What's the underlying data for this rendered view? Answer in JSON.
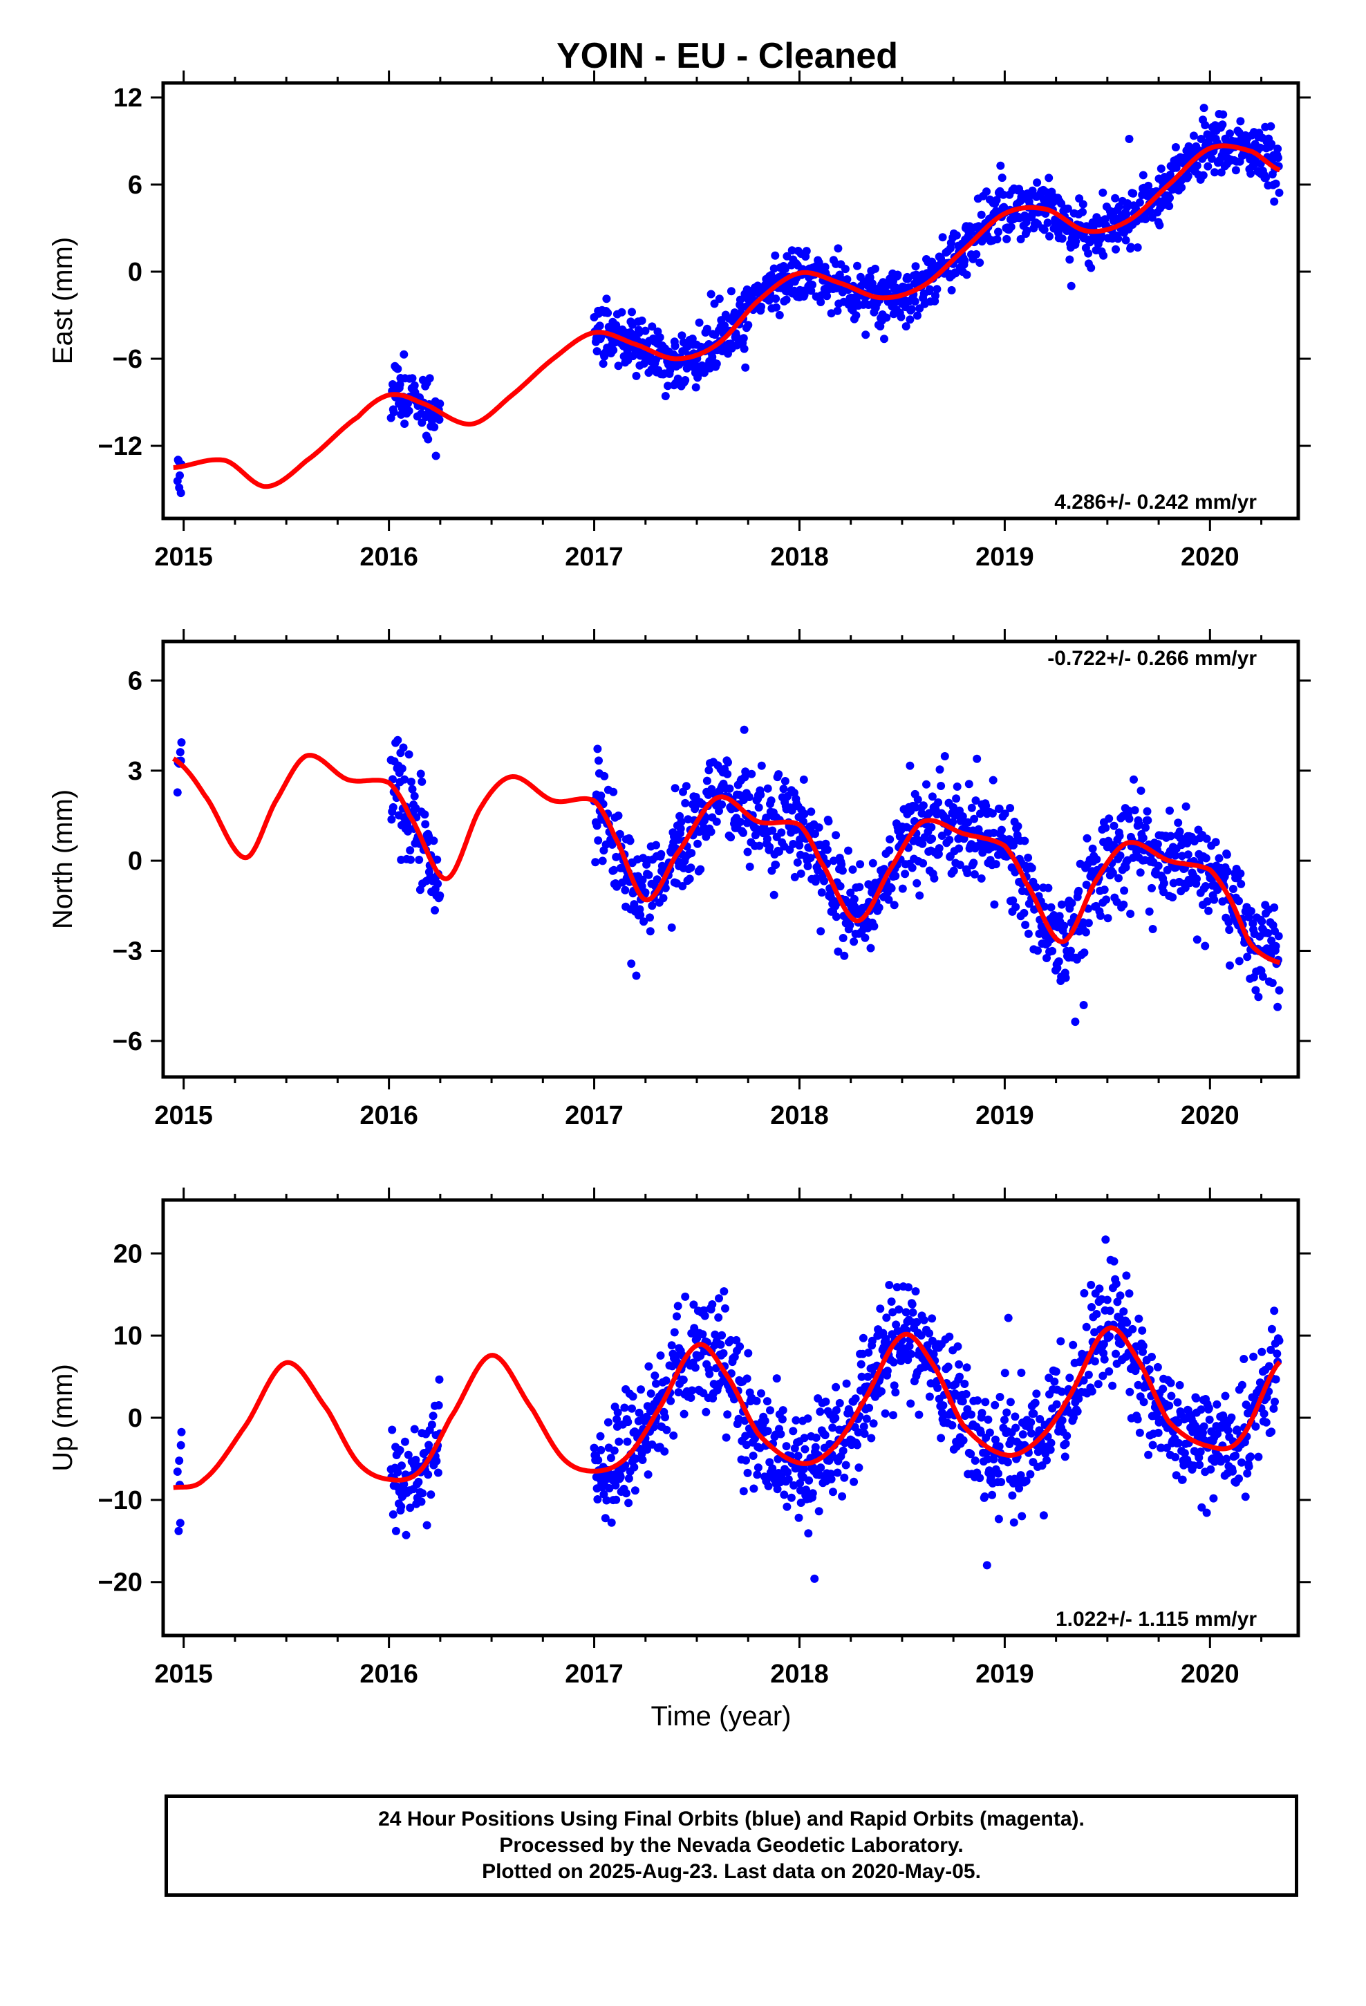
{
  "chart_data": [
    {
      "type": "scatter",
      "title": "YOIN  - EU - Cleaned",
      "ylabel": "East (mm)",
      "xlim": [
        2014.9,
        2020.43
      ],
      "ylim": [
        -17,
        13
      ],
      "yticks": [
        12,
        6,
        0,
        -6,
        -12
      ],
      "ytick_labels": [
        "12",
        "6",
        "0",
        "−6",
        "−12"
      ],
      "xticks": [
        2015,
        2016,
        2017,
        2018,
        2019,
        2020
      ],
      "xtick_labels": [
        "2015",
        "2016",
        "2017",
        "2018",
        "2019",
        "2020"
      ],
      "rate_text": "4.286+/- 0.242 mm/yr",
      "rate_position": "bottom-right",
      "point_color": "#0000ff",
      "fit_color": "#ff0000",
      "model": {
        "intercept": -13.8,
        "slope": 4.286,
        "t0": 2015.0,
        "annual_cos": 0.2,
        "annual_sin": 1.6,
        "semiannual_cos": 0.1,
        "semiannual_sin": 0.4
      },
      "noise": 1.0,
      "segments": [
        [
          2014.97,
          2014.99
        ],
        [
          2016.01,
          2016.25
        ],
        [
          2017.0,
          2020.34
        ]
      ],
      "fit": {
        "x": [
          2014.95,
          2015.2,
          2015.4,
          2015.6,
          2015.85,
          2016.0,
          2016.15,
          2016.4,
          2016.6,
          2016.8,
          2017.0,
          2017.2,
          2017.4,
          2017.6,
          2017.8,
          2018.0,
          2018.2,
          2018.4,
          2018.6,
          2018.8,
          2019.0,
          2019.2,
          2019.4,
          2019.6,
          2019.8,
          2020.0,
          2020.2,
          2020.34
        ],
        "y": [
          -13.5,
          -13.0,
          -14.8,
          -13.0,
          -10.0,
          -8.5,
          -9.0,
          -10.5,
          -8.5,
          -6.0,
          -4.2,
          -5.0,
          -6.0,
          -5.0,
          -2.0,
          -0.1,
          -0.8,
          -1.8,
          -1.0,
          1.5,
          4.0,
          4.3,
          2.8,
          3.5,
          6.0,
          8.5,
          8.3,
          7.0
        ]
      },
      "seed": 11
    },
    {
      "type": "scatter",
      "ylabel": "North (mm)",
      "xlim": [
        2014.9,
        2020.43
      ],
      "ylim": [
        -7.2,
        7.3
      ],
      "yticks": [
        6,
        3,
        0,
        -3,
        -6
      ],
      "ytick_labels": [
        "6",
        "3",
        "0",
        "−3",
        "−6"
      ],
      "xticks": [
        2015,
        2016,
        2017,
        2018,
        2019,
        2020
      ],
      "xtick_labels": [
        "2015",
        "2016",
        "2017",
        "2018",
        "2019",
        "2020"
      ],
      "rate_text": "-0.722+/- 0.266 mm/yr",
      "rate_position": "top-right",
      "point_color": "#0000ff",
      "fit_color": "#ff0000",
      "noise": 0.8,
      "segments": [
        [
          2014.97,
          2014.99
        ],
        [
          2016.01,
          2016.25
        ],
        [
          2017.0,
          2020.34
        ]
      ],
      "fit": {
        "x": [
          2014.95,
          2015.1,
          2015.3,
          2015.45,
          2015.6,
          2015.8,
          2016.0,
          2016.1,
          2016.28,
          2016.45,
          2016.6,
          2016.8,
          2017.0,
          2017.1,
          2017.25,
          2017.4,
          2017.6,
          2017.8,
          2018.0,
          2018.1,
          2018.28,
          2018.45,
          2018.6,
          2018.8,
          2019.0,
          2019.1,
          2019.28,
          2019.45,
          2019.6,
          2019.8,
          2020.0,
          2020.1,
          2020.2,
          2020.34
        ],
        "y": [
          3.4,
          2.2,
          0.1,
          2.0,
          3.5,
          2.7,
          2.6,
          1.5,
          -0.6,
          1.8,
          2.8,
          2.0,
          2.0,
          0.8,
          -1.3,
          0.2,
          2.1,
          1.3,
          1.2,
          0.0,
          -2.0,
          -0.2,
          1.3,
          0.9,
          0.5,
          -0.7,
          -2.7,
          -0.6,
          0.6,
          0.0,
          -0.3,
          -1.3,
          -2.8,
          -3.4
        ]
      },
      "seed": 23
    },
    {
      "type": "scatter",
      "xlabel": "Time (year)",
      "ylabel": "Up (mm)",
      "xlim": [
        2014.9,
        2020.43
      ],
      "ylim": [
        -26.5,
        26.5
      ],
      "yticks": [
        20,
        10,
        0,
        -10,
        -20
      ],
      "ytick_labels": [
        "20",
        "10",
        "0",
        "−10",
        "−20"
      ],
      "xticks": [
        2015,
        2016,
        2017,
        2018,
        2019,
        2020
      ],
      "xtick_labels": [
        "2015",
        "2016",
        "2017",
        "2018",
        "2019",
        "2020"
      ],
      "rate_text": "1.022+/- 1.115 mm/yr",
      "rate_position": "bottom-right",
      "point_color": "#0000ff",
      "fit_color": "#ff0000",
      "noise": 3.5,
      "segments": [
        [
          2014.97,
          2014.99
        ],
        [
          2016.01,
          2016.25
        ],
        [
          2017.0,
          2020.34
        ]
      ],
      "fit": {
        "x": [
          2014.95,
          2015.1,
          2015.3,
          2015.5,
          2015.7,
          2015.85,
          2016.0,
          2016.15,
          2016.3,
          2016.5,
          2016.7,
          2016.85,
          2017.0,
          2017.15,
          2017.3,
          2017.5,
          2017.65,
          2017.8,
          2018.0,
          2018.15,
          2018.3,
          2018.5,
          2018.65,
          2018.8,
          2019.0,
          2019.15,
          2019.3,
          2019.5,
          2019.65,
          2019.8,
          2020.0,
          2020.15,
          2020.34
        ],
        "y": [
          -8.5,
          -7.5,
          -1.0,
          6.7,
          1.0,
          -5.5,
          -7.5,
          -6.5,
          0.0,
          7.6,
          1.0,
          -5.0,
          -6.5,
          -5.0,
          0.5,
          8.8,
          5.0,
          -2.0,
          -5.5,
          -4.0,
          1.5,
          10.0,
          6.5,
          -1.0,
          -4.5,
          -3.0,
          2.0,
          10.8,
          7.0,
          -0.5,
          -3.5,
          -2.5,
          6.8
        ]
      },
      "seed": 37
    }
  ],
  "footer": {
    "line1": "24 Hour Positions Using Final Orbits (blue) and Rapid Orbits (magenta).",
    "line2": "Processed by the Nevada Geodetic Laboratory.",
    "line3": "Plotted on 2025-Aug-23. Last data on 2020-May-05."
  }
}
